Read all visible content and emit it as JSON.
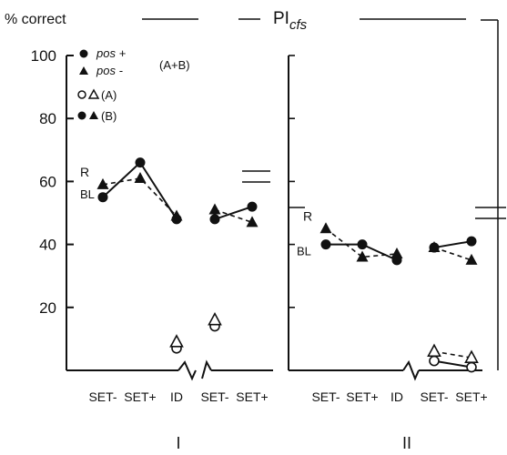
{
  "chart_data": {
    "type": "line",
    "ylabel": "% correct",
    "ylabel_right": "PI",
    "ylabel_right_sub": "cfs",
    "ylim": [
      0,
      100
    ],
    "yticks": [
      20,
      40,
      60,
      80,
      100
    ],
    "categories": [
      "SET-",
      "SET+",
      "ID",
      "SET-",
      "SET+"
    ],
    "legend": [
      {
        "marker": "filled-circle",
        "label": "pos +"
      },
      {
        "marker": "filled-triangle",
        "label": "pos -"
      },
      {
        "marker": "brace",
        "label": "(A+B)"
      },
      {
        "marker": "open-circle-triangle",
        "label": "(A)"
      },
      {
        "marker": "filled-circle-triangle",
        "label": "(B)"
      }
    ],
    "panels": [
      {
        "name": "I",
        "ref_labels": {
          "R": 63,
          "BL": 56
        },
        "series": [
          {
            "marker": "filled-circle",
            "line": "solid",
            "group": "(A+B)",
            "segments": [
              [
                55,
                66,
                48
              ],
              [
                48,
                52
              ]
            ]
          },
          {
            "marker": "filled-triangle",
            "line": "dashed",
            "group": "(A+B)",
            "segments": [
              [
                59,
                61,
                49
              ],
              [
                51,
                47
              ]
            ]
          },
          {
            "marker": "open-circle",
            "line": "solid",
            "group": "(A)",
            "segments": [
              [
                null,
                null,
                7
              ],
              [
                14
              ]
            ]
          },
          {
            "marker": "open-triangle",
            "line": "dashed",
            "group": "(A)",
            "segments": [
              [
                null,
                null,
                9
              ],
              [
                16
              ]
            ]
          }
        ]
      },
      {
        "name": "II",
        "ref_labels": {
          "R": 49,
          "BL": 38
        },
        "series": [
          {
            "marker": "filled-circle",
            "line": "solid",
            "group": "(A+B)",
            "segments": [
              [
                40,
                40,
                35
              ],
              [
                39,
                41
              ]
            ]
          },
          {
            "marker": "filled-triangle",
            "line": "dashed",
            "group": "(A+B)",
            "segments": [
              [
                45,
                36,
                37
              ],
              [
                39,
                35
              ]
            ]
          },
          {
            "marker": "open-circle",
            "line": "solid",
            "group": "(A)",
            "segments": [
              [
                null,
                null,
                null
              ],
              [
                3,
                1
              ]
            ]
          },
          {
            "marker": "open-triangle",
            "line": "dashed",
            "group": "(A)",
            "segments": [
              [
                null,
                null,
                null
              ],
              [
                6,
                4
              ]
            ]
          }
        ]
      }
    ]
  }
}
